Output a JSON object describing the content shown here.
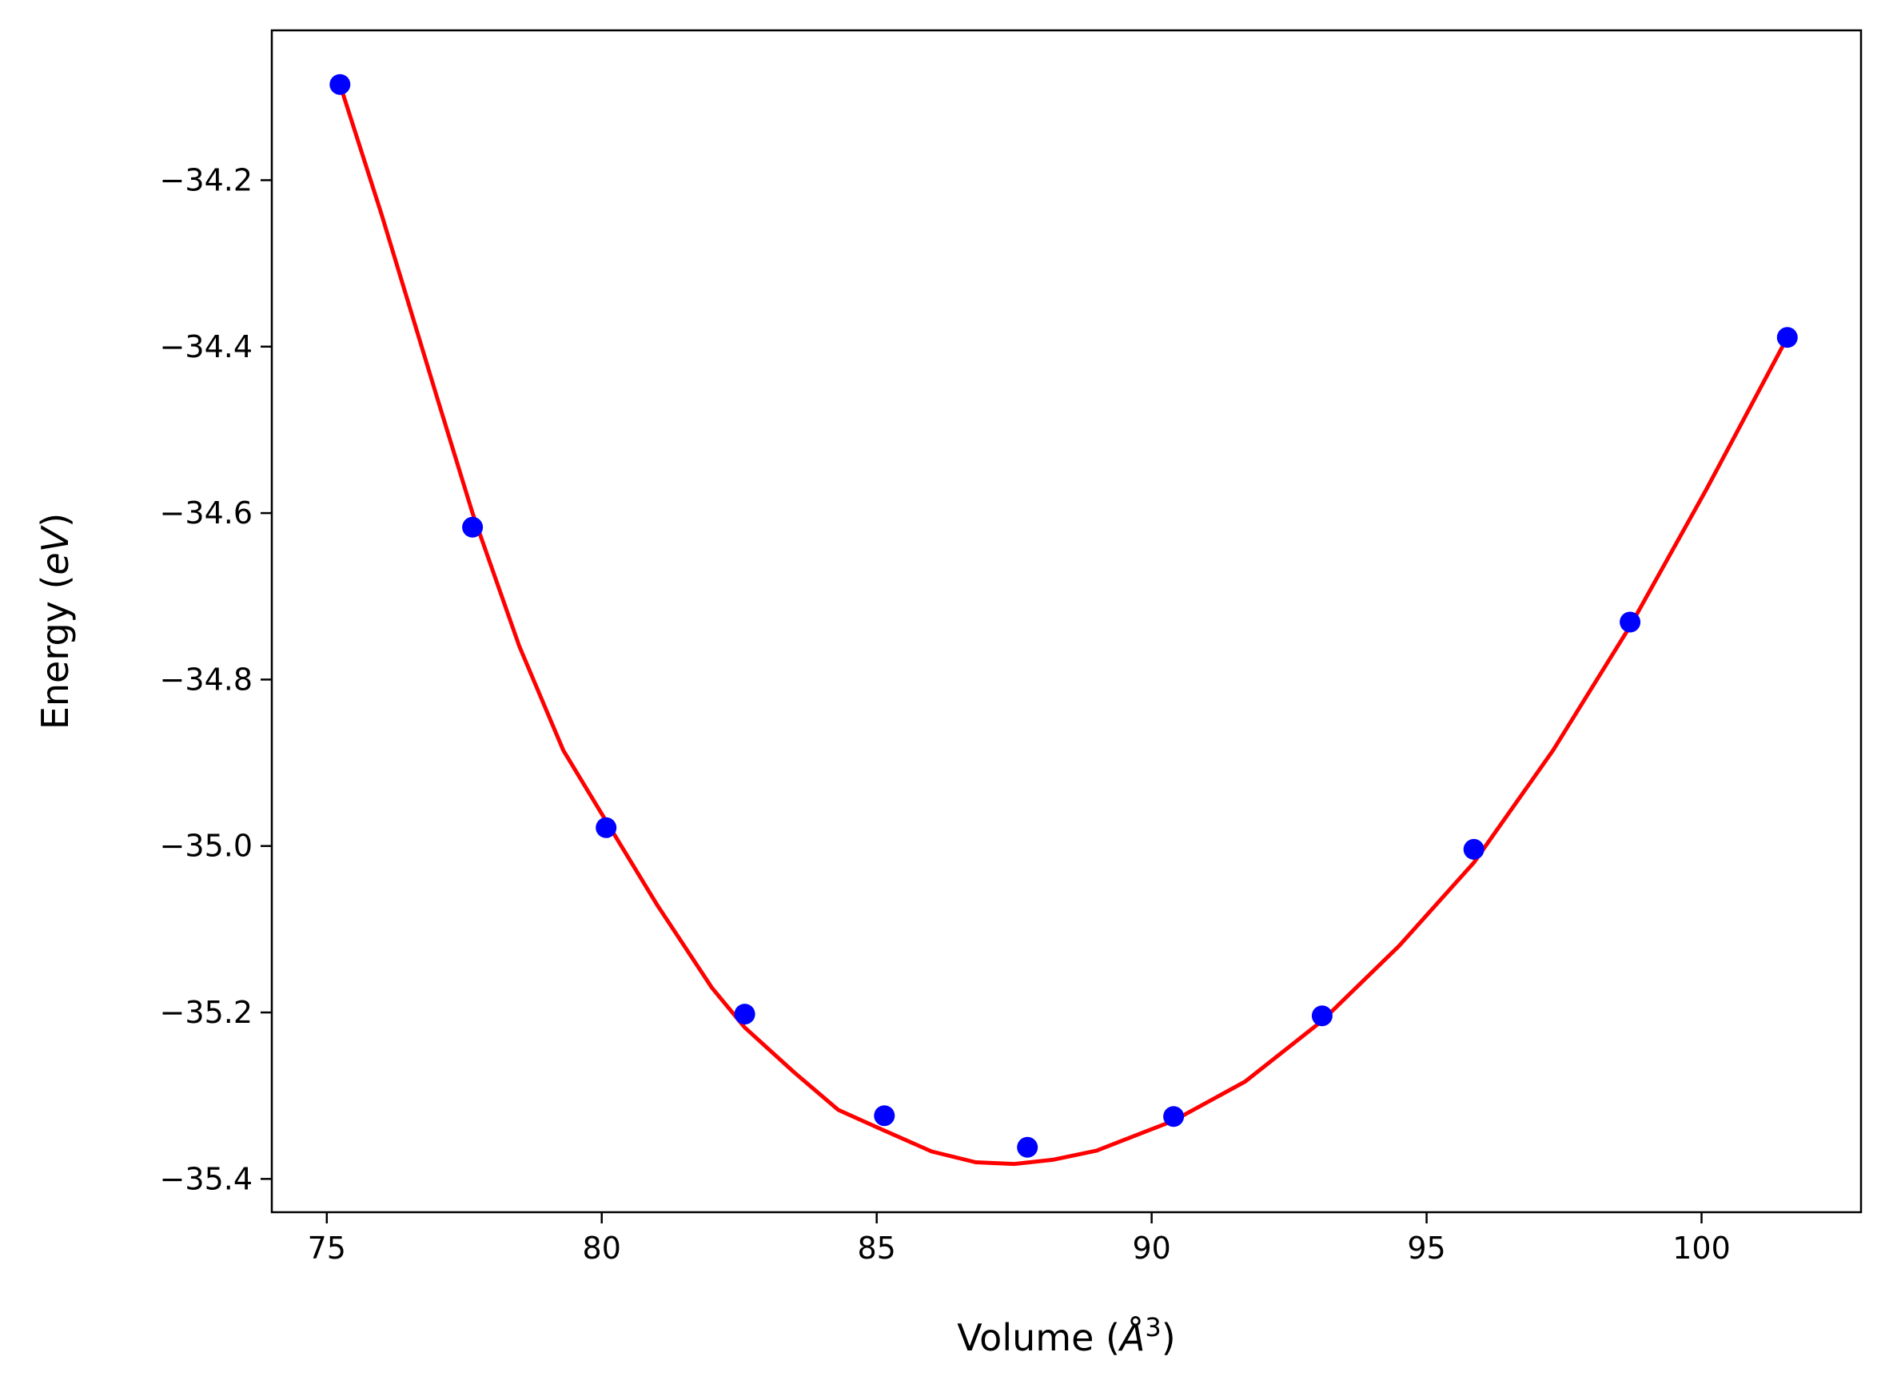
{
  "chart_data": {
    "type": "scatter",
    "title": "",
    "xlabel": {
      "prefix": "Volume (",
      "unit": "Å",
      "exponent": "3",
      "suffix": ")"
    },
    "ylabel": {
      "prefix": "Energy (",
      "unit": "eV",
      "suffix": ")"
    },
    "xlim": [
      74.0,
      102.9
    ],
    "ylim": [
      -35.44,
      -34.02
    ],
    "xticks": [
      75,
      80,
      85,
      90,
      95,
      100
    ],
    "yticks": [
      -35.4,
      -35.2,
      -35.0,
      -34.8,
      -34.6,
      -34.4,
      -34.2
    ],
    "ytick_labels": [
      "−35.4",
      "−35.2",
      "−35.0",
      "−34.8",
      "−34.6",
      "−34.4",
      "−34.2"
    ],
    "grid": false,
    "series": [
      {
        "kind": "points",
        "color": "#0000ff",
        "x": [
          75.24,
          77.65,
          80.08,
          82.6,
          85.14,
          87.74,
          90.4,
          93.1,
          95.86,
          98.7,
          101.56
        ],
        "y": [
          -34.085,
          -34.617,
          -34.978,
          -35.202,
          -35.324,
          -35.362,
          -35.325,
          -35.204,
          -35.004,
          -34.731,
          -34.389
        ]
      },
      {
        "kind": "fit-line",
        "color": "#ff0000",
        "x": [
          75.24,
          76.0,
          77.0,
          77.65,
          78.5,
          79.3,
          80.08,
          81.0,
          82.0,
          82.6,
          83.5,
          84.3,
          85.14,
          86.0,
          86.8,
          87.5,
          88.2,
          89.0,
          90.4,
          91.7,
          93.1,
          94.5,
          95.86,
          97.3,
          98.7,
          100.1,
          101.56
        ],
        "y": [
          -34.085,
          -34.242,
          -34.46,
          -34.6,
          -34.76,
          -34.885,
          -34.97,
          -35.07,
          -35.17,
          -35.218,
          -35.272,
          -35.317,
          -35.342,
          -35.367,
          -35.38,
          -35.382,
          -35.377,
          -35.366,
          -35.33,
          -35.283,
          -35.21,
          -35.12,
          -35.02,
          -34.885,
          -34.736,
          -34.57,
          -34.389
        ]
      }
    ]
  }
}
